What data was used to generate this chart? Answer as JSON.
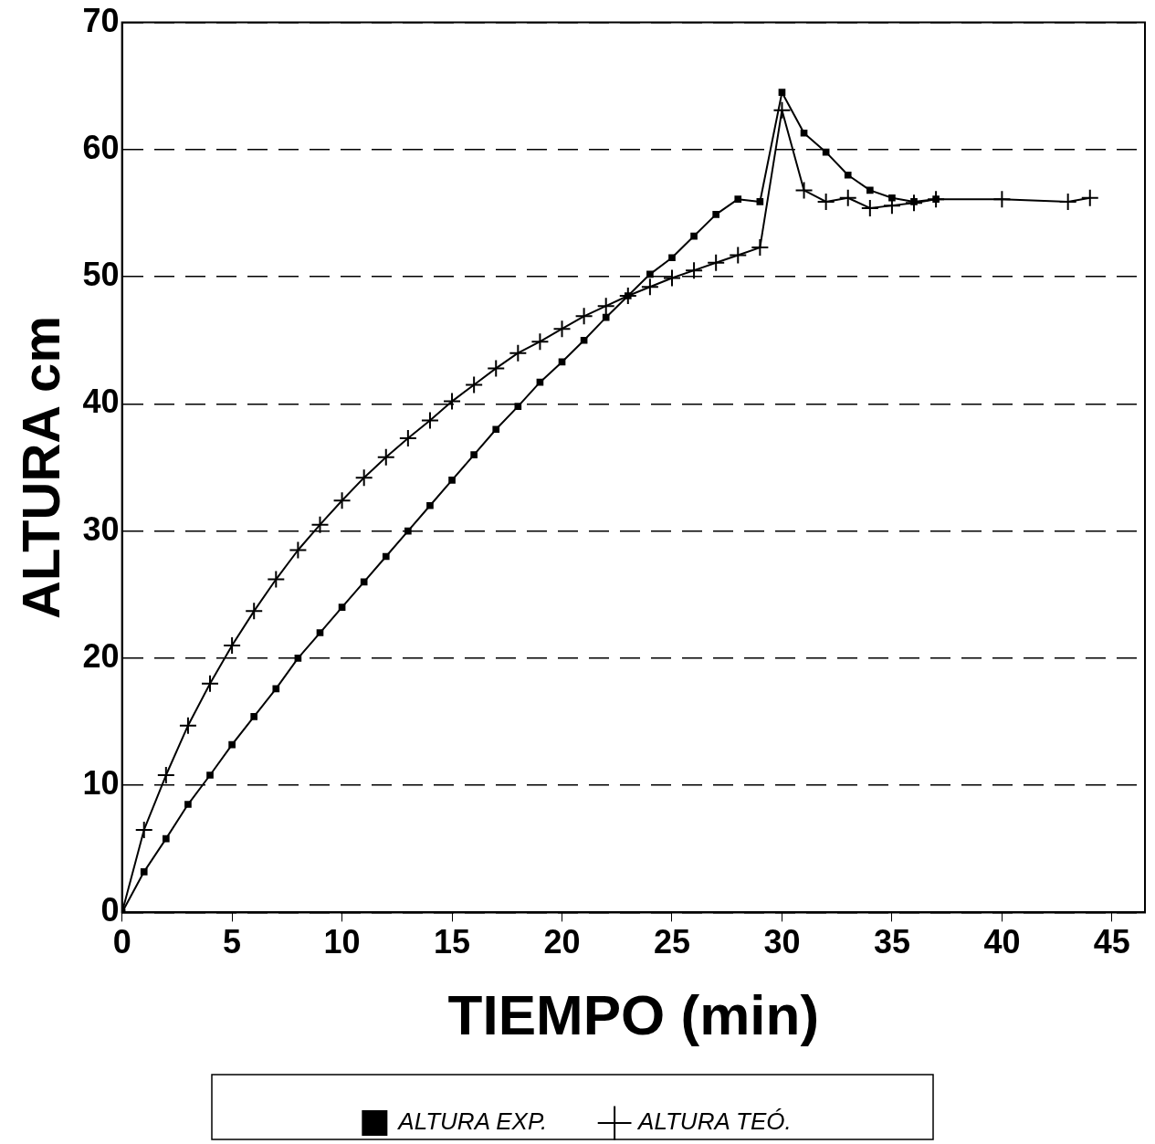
{
  "chart_data": {
    "type": "line",
    "xlabel": "TIEMPO (min)",
    "ylabel": "ALTURA cm",
    "xlim": [
      0,
      46.5
    ],
    "xticks": [
      0,
      5,
      10,
      15,
      20,
      25,
      30,
      35,
      40,
      45
    ],
    "ylim": [
      0,
      70
    ],
    "yticks": [
      0,
      10,
      20,
      30,
      40,
      50,
      60,
      70
    ],
    "grid": "y",
    "legend": "bottom",
    "line_style": "solid",
    "series": [
      {
        "name": "ALTURA EXP.",
        "color": "#000000",
        "marker": "square",
        "x": [
          0,
          1,
          2,
          3,
          4,
          5,
          6,
          7,
          8,
          9,
          10,
          11,
          12,
          13,
          14,
          15,
          16,
          17,
          18,
          19,
          20,
          21,
          22,
          23,
          24,
          25,
          26,
          27,
          28,
          29,
          30,
          31,
          32,
          33,
          34,
          35,
          36,
          37
        ],
        "values": [
          0,
          3.2,
          5.8,
          8.5,
          10.8,
          13.2,
          15.4,
          17.6,
          20,
          22,
          24,
          26,
          28,
          30,
          32,
          34,
          36,
          38,
          39.8,
          41.7,
          43.3,
          45,
          46.8,
          48.5,
          50.2,
          51.5,
          53.2,
          54.9,
          56.1,
          55.9,
          64.5,
          61.3,
          59.8,
          58,
          56.8,
          56.2,
          55.9,
          56.1
        ]
      },
      {
        "name": "ALTURA TEÓ.",
        "color": "#000000",
        "marker": "cross",
        "x": [
          0,
          1,
          2,
          3,
          4,
          5,
          6,
          7,
          8,
          9,
          10,
          11,
          12,
          13,
          14,
          15,
          16,
          17,
          18,
          19,
          20,
          21,
          22,
          23,
          24,
          25,
          26,
          27,
          28,
          29,
          30,
          31,
          32,
          33,
          34,
          35,
          36,
          37,
          40,
          43,
          44
        ],
        "values": [
          0,
          6.5,
          10.8,
          14.7,
          18,
          21,
          23.7,
          26.2,
          28.5,
          30.5,
          32.4,
          34.2,
          35.8,
          37.3,
          38.7,
          40.2,
          41.5,
          42.8,
          44,
          44.9,
          45.9,
          46.9,
          47.7,
          48.5,
          49.2,
          49.9,
          50.5,
          51.1,
          51.7,
          52.3,
          63.1,
          56.8,
          55.9,
          56.2,
          55.4,
          55.6,
          55.8,
          56.1,
          56.1,
          55.9,
          56.2
        ]
      }
    ]
  }
}
